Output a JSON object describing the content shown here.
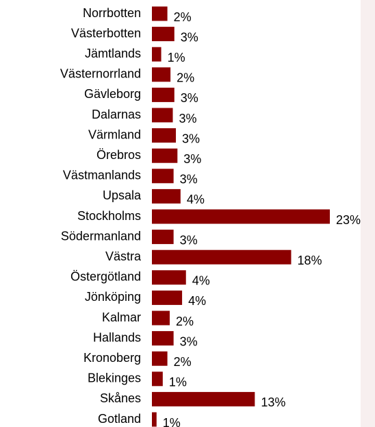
{
  "chart_data": {
    "type": "bar",
    "orientation": "horizontal",
    "categories": [
      "Norrbotten",
      "Västerbotten",
      "Jämtlands",
      "Västernorrland",
      "Gävleborg",
      "Dalarnas",
      "Värmland",
      "Örebros",
      "Västmanlands",
      "Upsala",
      "Stockholms",
      "Södermanland",
      "Västra",
      "Östergötland",
      "Jönköping",
      "Kalmar",
      "Hallands",
      "Kronoberg",
      "Blekinges",
      "Skånes",
      "Gotland"
    ],
    "values": [
      2.0,
      2.9,
      1.2,
      2.4,
      2.9,
      2.7,
      3.1,
      3.3,
      2.8,
      3.7,
      23,
      2.8,
      18.0,
      4.4,
      3.9,
      2.3,
      2.8,
      2.0,
      1.4,
      13.3,
      0.6
    ],
    "value_labels": [
      "2%",
      "3%",
      "1%",
      "2%",
      "3%",
      "3%",
      "3%",
      "3%",
      "3%",
      "4%",
      "23%",
      "3%",
      "18%",
      "4%",
      "4%",
      "2%",
      "3%",
      "2%",
      "1%",
      "13%",
      "1%"
    ],
    "color": "#8b0000",
    "xlim": [
      0,
      23
    ]
  }
}
